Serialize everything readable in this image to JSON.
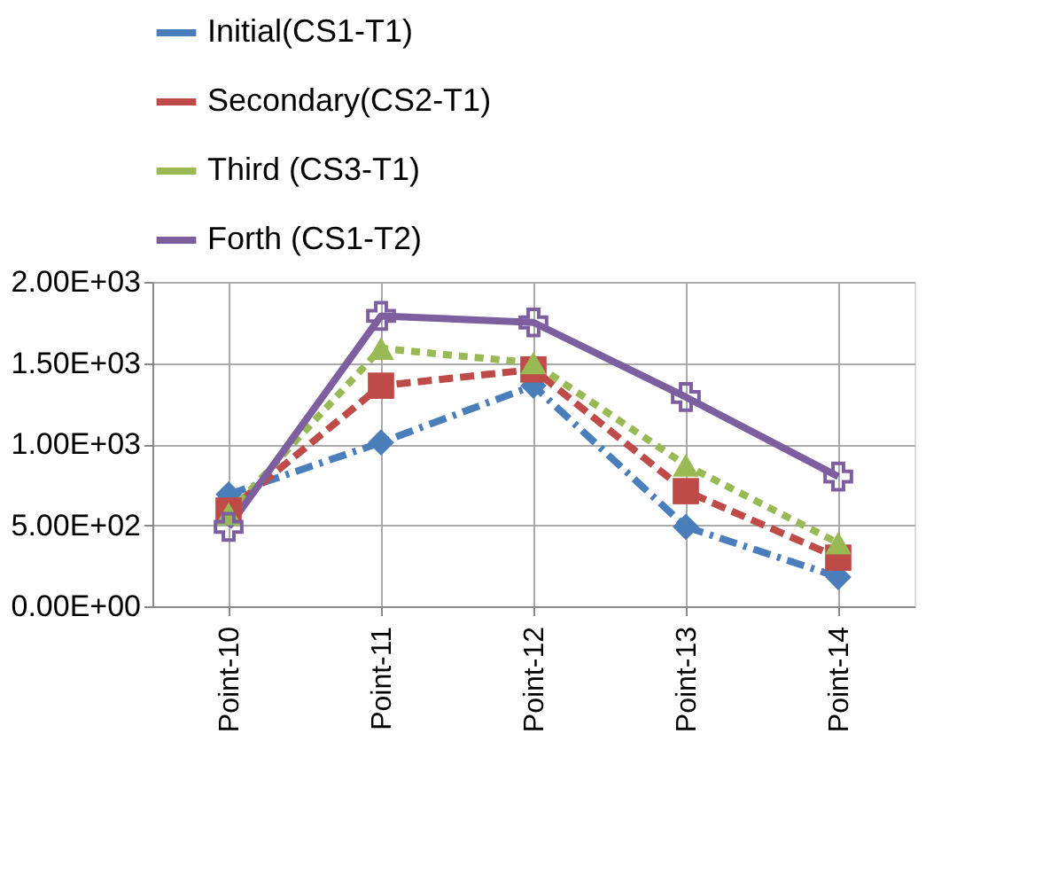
{
  "chart_data": {
    "type": "line",
    "categories": [
      "Point-10",
      "Point-11",
      "Point-12",
      "Point-13",
      "Point-14"
    ],
    "series": [
      {
        "name": "Initial(CS1-T1)",
        "color": "#4a7ebb",
        "marker": "diamond",
        "line_style": "dashdot",
        "values": [
          690,
          1010,
          1360,
          490,
          180
        ]
      },
      {
        "name": "Secondary(CS2-T1)",
        "color": "#be4b48",
        "marker": "square",
        "line_style": "dashed",
        "values": [
          590,
          1360,
          1460,
          710,
          300
        ]
      },
      {
        "name": "Third (CS3-T1)",
        "color": "#98b954",
        "marker": "triangle",
        "line_style": "dotted",
        "values": [
          570,
          1590,
          1500,
          870,
          390
        ]
      },
      {
        "name": "Forth (CS1-T2)",
        "color": "#7d5fa0",
        "marker": "cross",
        "line_style": "solid",
        "values": [
          490,
          1790,
          1750,
          1290,
          800
        ]
      }
    ],
    "ylim": [
      0,
      2000
    ],
    "yticks": [
      {
        "value": 0,
        "label": "0.00E+00"
      },
      {
        "value": 500,
        "label": "5.00E+02"
      },
      {
        "value": 1000,
        "label": "1.00E+03"
      },
      {
        "value": 1500,
        "label": "1.50E+03"
      },
      {
        "value": 2000,
        "label": "2.00E+03"
      }
    ],
    "grid": true,
    "legend": "top"
  }
}
